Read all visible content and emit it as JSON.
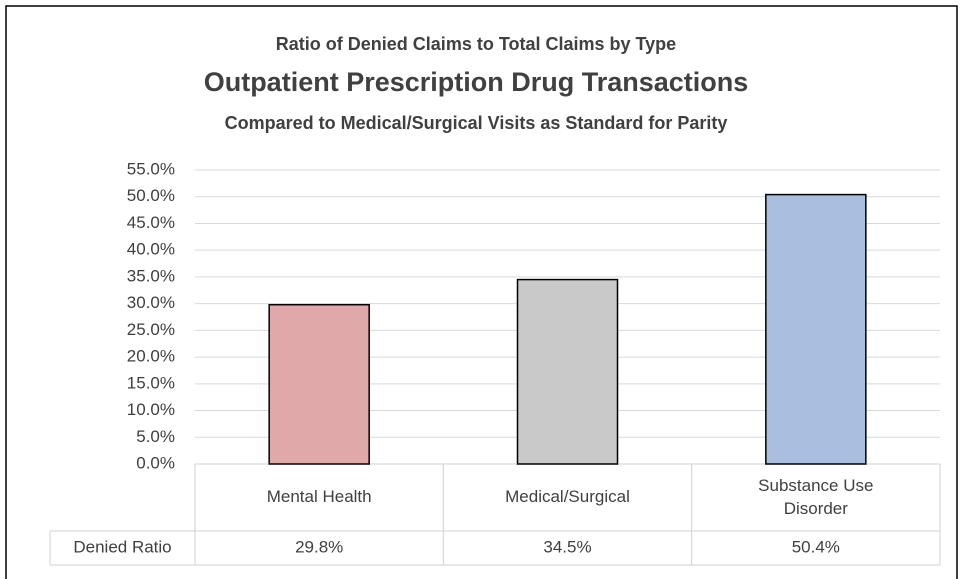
{
  "chart_data": {
    "type": "bar",
    "title": "Ratio of Denied Claims to Total Claims by Type",
    "subtitle": "Outpatient Prescription Drug Transactions",
    "caption": "Compared to Medical/Surgical Visits as Standard for Parity",
    "categories": [
      "Mental Health",
      "Medical/Surgical",
      "Substance Use Disorder"
    ],
    "series": [
      {
        "name": "Denied Ratio",
        "colors": [
          "#e0a8a8",
          "#c9c9c9",
          "#a9bfe0"
        ],
        "values": [
          29.8,
          34.5,
          50.4
        ],
        "value_labels": [
          "29.8%",
          "34.5%",
          "50.4%"
        ]
      }
    ],
    "ylim": [
      0,
      55
    ],
    "yticks": [
      {
        "value": 0,
        "label": "0.0%"
      },
      {
        "value": 5,
        "label": "5.0%"
      },
      {
        "value": 10,
        "label": "10.0%"
      },
      {
        "value": 15,
        "label": "15.0%"
      },
      {
        "value": 20,
        "label": "20.0%"
      },
      {
        "value": 25,
        "label": "25.0%"
      },
      {
        "value": 30,
        "label": "30.0%"
      },
      {
        "value": 35,
        "label": "35.0%"
      },
      {
        "value": 40,
        "label": "40.0%"
      },
      {
        "value": 45,
        "label": "45.0%"
      },
      {
        "value": 50,
        "label": "50.0%"
      },
      {
        "value": 55,
        "label": "55.0%"
      }
    ],
    "grid": true
  }
}
